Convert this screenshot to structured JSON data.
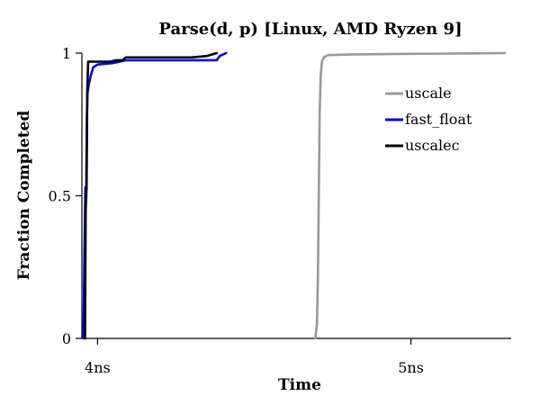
{
  "chart_data": {
    "type": "line",
    "title": "Parse(d, p) [Linux, AMD Ryzen 9]",
    "xlabel": "Time",
    "ylabel": "Fraction Completed",
    "x_unit": "ns",
    "xlim": [
      3.95,
      5.32
    ],
    "ylim": [
      0,
      1
    ],
    "x_ticks": [
      {
        "value": 4,
        "label": "4ns"
      },
      {
        "value": 5,
        "label": "5ns"
      }
    ],
    "y_ticks": [
      {
        "value": 0,
        "label": "0"
      },
      {
        "value": 0.5,
        "label": "0.5"
      },
      {
        "value": 1,
        "label": "1"
      }
    ],
    "grid": false,
    "legend_position": "right",
    "series": [
      {
        "name": "uscale",
        "color": "#999999",
        "points": [
          [
            4.695,
            0
          ],
          [
            4.7,
            0.05
          ],
          [
            4.703,
            0.2
          ],
          [
            4.706,
            0.5
          ],
          [
            4.709,
            0.8
          ],
          [
            4.712,
            0.92
          ],
          [
            4.716,
            0.97
          ],
          [
            4.722,
            0.985
          ],
          [
            4.735,
            0.993
          ],
          [
            4.8,
            0.995
          ],
          [
            4.95,
            0.997
          ],
          [
            5.1,
            0.998
          ],
          [
            5.3,
            1.0
          ]
        ]
      },
      {
        "name": "fast_float",
        "color": "#0000ff",
        "points": [
          [
            3.955,
            0
          ],
          [
            3.958,
            0.3
          ],
          [
            3.961,
            0.53
          ],
          [
            3.964,
            0.53
          ],
          [
            3.966,
            0.78
          ],
          [
            3.968,
            0.86
          ],
          [
            3.972,
            0.89
          ],
          [
            3.978,
            0.92
          ],
          [
            3.986,
            0.95
          ],
          [
            4.0,
            0.96
          ],
          [
            4.05,
            0.965
          ],
          [
            4.09,
            0.975
          ],
          [
            4.2,
            0.975
          ],
          [
            4.38,
            0.975
          ],
          [
            4.39,
            0.99
          ],
          [
            4.41,
            1.0
          ]
        ]
      },
      {
        "name": "uscalec",
        "color": "#000000",
        "points": [
          [
            3.96,
            0
          ],
          [
            3.962,
            0.45
          ],
          [
            3.965,
            0.53
          ],
          [
            3.967,
            0.86
          ],
          [
            3.97,
            0.97
          ],
          [
            4.04,
            0.97
          ],
          [
            4.06,
            0.975
          ],
          [
            4.08,
            0.975
          ],
          [
            4.09,
            0.985
          ],
          [
            4.22,
            0.985
          ],
          [
            4.3,
            0.985
          ],
          [
            4.35,
            0.99
          ],
          [
            4.38,
            1.0
          ]
        ]
      }
    ]
  }
}
